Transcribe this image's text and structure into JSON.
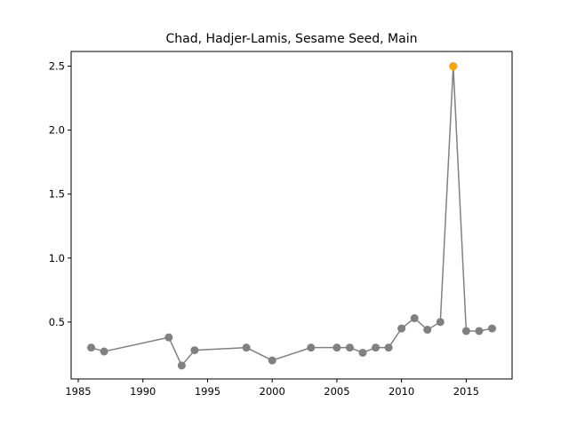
{
  "chart_data": {
    "type": "line",
    "title": "Chad, Hadjer-Lamis, Sesame Seed, Main",
    "xlabel": "",
    "ylabel": "",
    "xlim": [
      1984.45,
      2018.55
    ],
    "ylim": [
      0.055,
      2.615
    ],
    "x_ticks": [
      1985,
      1990,
      1995,
      2000,
      2005,
      2010,
      2015
    ],
    "y_ticks": [
      0.5,
      1.0,
      1.5,
      2.0,
      2.5
    ],
    "y_tick_labels": [
      "0.5",
      "1.0",
      "1.5",
      "2.0",
      "2.5"
    ],
    "grid": false,
    "line_color": "#808080",
    "highlight_color": "#ffa500",
    "series": [
      {
        "x": [
          1986,
          1987,
          1992,
          1993,
          1994,
          1998,
          2000,
          2003,
          2005,
          2006,
          2007,
          2008,
          2009,
          2010,
          2011,
          2012,
          2013,
          2014,
          2015,
          2016,
          2017
        ],
        "y": [
          0.3,
          0.27,
          0.38,
          0.16,
          0.28,
          0.3,
          0.2,
          0.3,
          0.3,
          0.3,
          0.26,
          0.3,
          0.3,
          0.45,
          0.53,
          0.44,
          0.5,
          2.5,
          0.43,
          0.43,
          0.45
        ]
      }
    ],
    "highlight": {
      "x": 2014,
      "y": 2.5
    }
  }
}
